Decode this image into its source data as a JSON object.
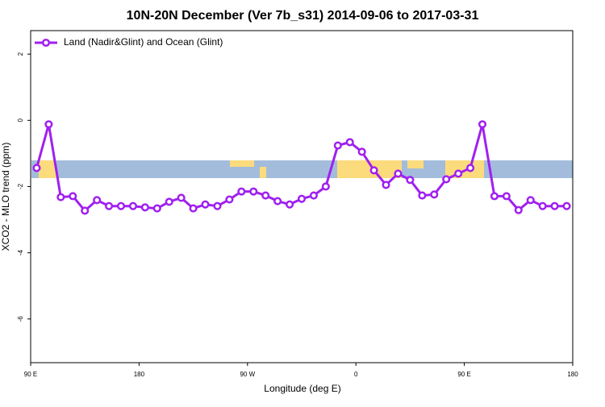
{
  "chart_data": {
    "type": "line",
    "title": "10N-20N December (Ver 7b_s31)   2014-09-06 to 2017-03-31",
    "xlabel": "Longitude (deg E)",
    "ylabel": "XCO2 - MLO trend (ppm)",
    "x": [
      95,
      105,
      115,
      125,
      135,
      145,
      155,
      165,
      175,
      185,
      195,
      205,
      215,
      225,
      235,
      245,
      255,
      265,
      275,
      285,
      295,
      305,
      315,
      325,
      335,
      345,
      355,
      365,
      375,
      385,
      395,
      405,
      415,
      425,
      435,
      445,
      455,
      465,
      475,
      485,
      495,
      505,
      515,
      525,
      535
    ],
    "series": [
      {
        "name": "Land (Nadir&Glint) and Ocean (Glint)",
        "color": "#a020f0",
        "values": [
          -1.44,
          -0.12,
          -2.32,
          -2.29,
          -2.73,
          -2.41,
          -2.59,
          -2.59,
          -2.59,
          -2.63,
          -2.66,
          -2.46,
          -2.34,
          -2.66,
          -2.54,
          -2.59,
          -2.39,
          -2.15,
          -2.15,
          -2.27,
          -2.44,
          -2.54,
          -2.37,
          -2.27,
          -2.0,
          -0.76,
          -0.66,
          -0.95,
          -1.51,
          -1.95,
          -1.61,
          -1.8,
          -2.27,
          -2.24,
          -1.78,
          -1.61,
          -1.44,
          -0.12,
          -2.29,
          -2.29,
          -2.71,
          -2.41,
          -2.59,
          -2.59,
          -2.59
        ]
      }
    ],
    "xlim": [
      90,
      540
    ],
    "xticks": [
      {
        "value": 90,
        "label": "90 E"
      },
      180,
      {
        "value": 270,
        "label": "90 W"
      },
      {
        "value": 360,
        "label": "0"
      },
      {
        "value": 450,
        "label": "90 E"
      },
      {
        "value": 540,
        "label": "180"
      }
    ],
    "ylim": [
      -7.32,
      2.71
    ],
    "yticks": [
      -6,
      -4,
      -2,
      0,
      2
    ],
    "legend": "top-left"
  }
}
